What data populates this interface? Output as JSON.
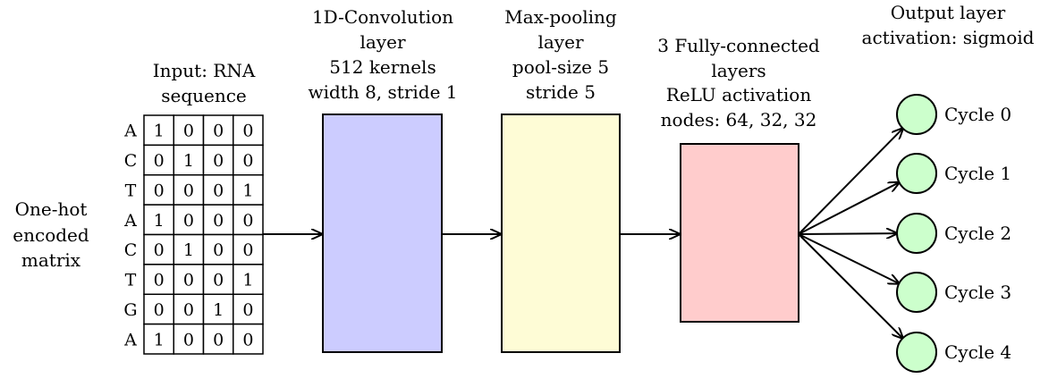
{
  "colors": {
    "conv_fill": "#ccccff",
    "pool_fill": "#fefcd6",
    "fc_fill": "#ffcccc",
    "output_node_fill": "#ccffcc",
    "stroke": "#000000"
  },
  "side_label": [
    "One-hot",
    "encoded",
    "matrix"
  ],
  "input": {
    "title": [
      "Input: RNA",
      "sequence"
    ],
    "bases": [
      "A",
      "C",
      "T",
      "A",
      "C",
      "T",
      "G",
      "A"
    ],
    "matrix": [
      [
        "1",
        "0",
        "0",
        "0"
      ],
      [
        "0",
        "1",
        "0",
        "0"
      ],
      [
        "0",
        "0",
        "0",
        "1"
      ],
      [
        "1",
        "0",
        "0",
        "0"
      ],
      [
        "0",
        "1",
        "0",
        "0"
      ],
      [
        "0",
        "0",
        "0",
        "1"
      ],
      [
        "0",
        "0",
        "1",
        "0"
      ],
      [
        "1",
        "0",
        "0",
        "0"
      ]
    ]
  },
  "layers": {
    "conv": {
      "title": [
        "1D-Convolution",
        "layer",
        "512 kernels",
        "width 8, stride 1"
      ]
    },
    "pool": {
      "title": [
        "Max-pooling",
        "layer",
        "pool-size 5",
        "stride 5"
      ]
    },
    "fc": {
      "title": [
        "3 Fully-connected",
        "layers",
        "ReLU activation",
        "nodes: 64, 32, 32"
      ]
    }
  },
  "output": {
    "title": [
      "Output layer",
      "activation: sigmoid"
    ],
    "nodes": [
      "Cycle 0",
      "Cycle 1",
      "Cycle 2",
      "Cycle 3",
      "Cycle 4"
    ]
  }
}
